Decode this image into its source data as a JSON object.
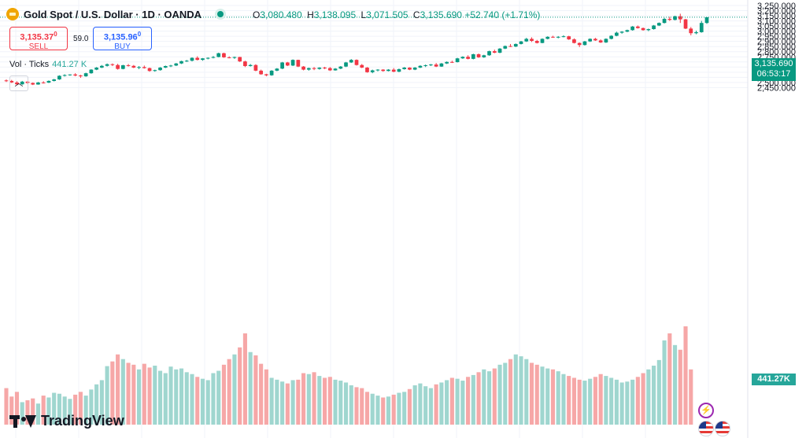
{
  "header": {
    "title": "Gold Spot / U.S. Dollar · 1D · OANDA",
    "ohlc": {
      "o_label": "O",
      "o": "3,080.480",
      "h_label": "H",
      "h": "3,138.095",
      "l_label": "L",
      "l": "3,071.505",
      "c_label": "C",
      "c": "3,135.690",
      "change": "+52.740 (+1.71%)"
    }
  },
  "trade": {
    "sell_price": "3,135.37",
    "sell_sup": "0",
    "sell_label": "SELL",
    "spread": "59.0",
    "buy_price": "3,135.96",
    "buy_sup": "0",
    "buy_label": "BUY"
  },
  "volume_legend": {
    "label": "Vol · Ticks",
    "value": "441.27 K"
  },
  "price_marker": {
    "price": "3,135.690",
    "countdown": "06:53:17"
  },
  "volume_marker": "441.27K",
  "brand": "TradingView",
  "icons": [
    "gold-coin-icon",
    "market-status-icon",
    "collapse-icon",
    "tradingview-logo-icon",
    "lightning-icon",
    "us-flag-icon"
  ],
  "colors": {
    "up": "#089981",
    "down": "#f23645",
    "vol_up": "#26a69a",
    "vol_down": "#ef9a9a",
    "grid": "#f0f3fa"
  },
  "chart_data": {
    "type": "candlestick",
    "ylim": [
      2450,
      3250
    ],
    "y_ticks": [
      "2,450.000",
      "2,500.000",
      "2,550.000",
      "2,600.000",
      "2,650.000",
      "2,700.000",
      "2,750.000",
      "2,800.000",
      "2,850.000",
      "2,900.000",
      "2,950.000",
      "3,000.000",
      "3,050.000",
      "3,100.000",
      "3,150.000",
      "3,200.000",
      "3,250.000"
    ],
    "last_price": 3135.69,
    "ohlc": [
      [
        2520,
        2530,
        2505,
        2515
      ],
      [
        2515,
        2525,
        2495,
        2500
      ],
      [
        2500,
        2512,
        2475,
        2482
      ],
      [
        2482,
        2515,
        2478,
        2508
      ],
      [
        2508,
        2512,
        2488,
        2495
      ],
      [
        2495,
        2500,
        2475,
        2480
      ],
      [
        2480,
        2505,
        2478,
        2500
      ],
      [
        2500,
        2512,
        2490,
        2498
      ],
      [
        2498,
        2520,
        2495,
        2515
      ],
      [
        2515,
        2535,
        2510,
        2530
      ],
      [
        2530,
        2570,
        2525,
        2565
      ],
      [
        2565,
        2580,
        2558,
        2572
      ],
      [
        2572,
        2580,
        2565,
        2578
      ],
      [
        2578,
        2590,
        2560,
        2568
      ],
      [
        2568,
        2575,
        2545,
        2560
      ],
      [
        2560,
        2595,
        2555,
        2590
      ],
      [
        2590,
        2630,
        2585,
        2625
      ],
      [
        2625,
        2650,
        2620,
        2645
      ],
      [
        2645,
        2670,
        2640,
        2662
      ],
      [
        2662,
        2685,
        2655,
        2678
      ],
      [
        2678,
        2685,
        2660,
        2670
      ],
      [
        2670,
        2682,
        2625,
        2632
      ],
      [
        2632,
        2672,
        2628,
        2668
      ],
      [
        2668,
        2680,
        2655,
        2662
      ],
      [
        2662,
        2670,
        2640,
        2645
      ],
      [
        2645,
        2660,
        2630,
        2650
      ],
      [
        2650,
        2665,
        2635,
        2640
      ],
      [
        2640,
        2645,
        2605,
        2612
      ],
      [
        2612,
        2625,
        2605,
        2620
      ],
      [
        2620,
        2650,
        2615,
        2645
      ],
      [
        2645,
        2665,
        2640,
        2660
      ],
      [
        2660,
        2672,
        2650,
        2665
      ],
      [
        2665,
        2690,
        2660,
        2685
      ],
      [
        2685,
        2712,
        2680,
        2708
      ],
      [
        2708,
        2720,
        2700,
        2712
      ],
      [
        2712,
        2745,
        2705,
        2740
      ],
      [
        2740,
        2755,
        2715,
        2720
      ],
      [
        2720,
        2738,
        2712,
        2735
      ],
      [
        2735,
        2745,
        2725,
        2740
      ],
      [
        2740,
        2758,
        2735,
        2748
      ],
      [
        2748,
        2790,
        2745,
        2785
      ],
      [
        2785,
        2790,
        2740,
        2745
      ],
      [
        2745,
        2755,
        2735,
        2740
      ],
      [
        2740,
        2752,
        2730,
        2748
      ],
      [
        2748,
        2750,
        2700,
        2705
      ],
      [
        2705,
        2712,
        2650,
        2660
      ],
      [
        2660,
        2680,
        2655,
        2670
      ],
      [
        2670,
        2678,
        2610,
        2615
      ],
      [
        2615,
        2625,
        2575,
        2580
      ],
      [
        2580,
        2585,
        2560,
        2570
      ],
      [
        2570,
        2620,
        2565,
        2615
      ],
      [
        2615,
        2640,
        2610,
        2635
      ],
      [
        2635,
        2700,
        2630,
        2695
      ],
      [
        2695,
        2700,
        2660,
        2665
      ],
      [
        2665,
        2725,
        2660,
        2720
      ],
      [
        2720,
        2722,
        2650,
        2655
      ],
      [
        2655,
        2660,
        2618,
        2625
      ],
      [
        2625,
        2645,
        2615,
        2640
      ],
      [
        2640,
        2650,
        2620,
        2632
      ],
      [
        2632,
        2648,
        2625,
        2645
      ],
      [
        2645,
        2652,
        2630,
        2640
      ],
      [
        2640,
        2650,
        2612,
        2618
      ],
      [
        2618,
        2640,
        2615,
        2635
      ],
      [
        2635,
        2660,
        2630,
        2655
      ],
      [
        2655,
        2700,
        2650,
        2695
      ],
      [
        2695,
        2728,
        2690,
        2720
      ],
      [
        2720,
        2725,
        2665,
        2670
      ],
      [
        2670,
        2680,
        2640,
        2645
      ],
      [
        2645,
        2650,
        2595,
        2600
      ],
      [
        2600,
        2625,
        2590,
        2618
      ],
      [
        2618,
        2630,
        2608,
        2625
      ],
      [
        2625,
        2630,
        2605,
        2612
      ],
      [
        2612,
        2630,
        2608,
        2625
      ],
      [
        2625,
        2640,
        2600,
        2605
      ],
      [
        2605,
        2635,
        2600,
        2630
      ],
      [
        2630,
        2650,
        2625,
        2645
      ],
      [
        2645,
        2648,
        2620,
        2625
      ],
      [
        2625,
        2650,
        2620,
        2645
      ],
      [
        2645,
        2668,
        2640,
        2662
      ],
      [
        2662,
        2675,
        2650,
        2668
      ],
      [
        2668,
        2680,
        2660,
        2675
      ],
      [
        2675,
        2690,
        2650,
        2655
      ],
      [
        2655,
        2690,
        2652,
        2685
      ],
      [
        2685,
        2705,
        2680,
        2700
      ],
      [
        2700,
        2712,
        2690,
        2698
      ],
      [
        2698,
        2740,
        2695,
        2735
      ],
      [
        2735,
        2755,
        2730,
        2750
      ],
      [
        2750,
        2765,
        2725,
        2730
      ],
      [
        2730,
        2780,
        2725,
        2775
      ],
      [
        2775,
        2782,
        2740,
        2745
      ],
      [
        2745,
        2770,
        2740,
        2765
      ],
      [
        2765,
        2810,
        2760,
        2805
      ],
      [
        2805,
        2820,
        2785,
        2790
      ],
      [
        2790,
        2835,
        2785,
        2830
      ],
      [
        2830,
        2860,
        2825,
        2855
      ],
      [
        2855,
        2875,
        2845,
        2850
      ],
      [
        2850,
        2880,
        2845,
        2875
      ],
      [
        2875,
        2905,
        2870,
        2900
      ],
      [
        2900,
        2935,
        2895,
        2925
      ],
      [
        2925,
        2940,
        2895,
        2905
      ],
      [
        2905,
        2915,
        2880,
        2885
      ],
      [
        2885,
        2930,
        2882,
        2925
      ],
      [
        2925,
        2950,
        2920,
        2945
      ],
      [
        2945,
        2955,
        2935,
        2940
      ],
      [
        2940,
        2952,
        2930,
        2945
      ],
      [
        2945,
        2960,
        2940,
        2950
      ],
      [
        2950,
        2955,
        2915,
        2920
      ],
      [
        2920,
        2930,
        2880,
        2885
      ],
      [
        2885,
        2890,
        2845,
        2865
      ],
      [
        2865,
        2905,
        2860,
        2900
      ],
      [
        2900,
        2930,
        2895,
        2925
      ],
      [
        2925,
        2935,
        2905,
        2910
      ],
      [
        2910,
        2920,
        2885,
        2890
      ],
      [
        2890,
        2930,
        2885,
        2925
      ],
      [
        2925,
        2960,
        2920,
        2955
      ],
      [
        2955,
        2995,
        2950,
        2985
      ],
      [
        2985,
        3000,
        2975,
        2995
      ],
      [
        2995,
        3015,
        2990,
        3010
      ],
      [
        3010,
        3050,
        3005,
        3045
      ],
      [
        3045,
        3055,
        3025,
        3030
      ],
      [
        3030,
        3035,
        3005,
        3010
      ],
      [
        3010,
        3025,
        3000,
        3020
      ],
      [
        3020,
        3060,
        3015,
        3055
      ],
      [
        3055,
        3085,
        3050,
        3080
      ],
      [
        3080,
        3130,
        3075,
        3120
      ],
      [
        3120,
        3140,
        3100,
        3110
      ],
      [
        3110,
        3150,
        3105,
        3145
      ],
      [
        3145,
        3170,
        3080,
        3115
      ],
      [
        3115,
        3120,
        3020,
        3025
      ],
      [
        3025,
        3040,
        2960,
        2980
      ],
      [
        2980,
        3005,
        2970,
        2990
      ],
      [
        2990,
        3100,
        2985,
        3080
      ],
      [
        3080,
        3138,
        3071,
        3135.69
      ]
    ],
    "volume": [
      78,
      60,
      70,
      48,
      52,
      56,
      45,
      62,
      58,
      68,
      66,
      60,
      55,
      64,
      70,
      62,
      75,
      86,
      95,
      125,
      135,
      150,
      140,
      132,
      128,
      118,
      130,
      122,
      126,
      115,
      110,
      124,
      118,
      120,
      112,
      108,
      102,
      98,
      95,
      110,
      115,
      128,
      140,
      150,
      165,
      195,
      155,
      148,
      130,
      118,
      100,
      96,
      92,
      88,
      95,
      96,
      110,
      108,
      112,
      104,
      100,
      102,
      96,
      94,
      90,
      84,
      80,
      78,
      70,
      66,
      62,
      58,
      60,
      64,
      68,
      70,
      76,
      84,
      88,
      82,
      78,
      86,
      90,
      95,
      100,
      98,
      94,
      102,
      106,
      112,
      118,
      114,
      120,
      128,
      132,
      140,
      150,
      146,
      140,
      132,
      128,
      124,
      120,
      118,
      114,
      108,
      104,
      100,
      96,
      94,
      98,
      102,
      108,
      104,
      100,
      96,
      90,
      92,
      96,
      102,
      110,
      118,
      126,
      138,
      180,
      195,
      170,
      160,
      210,
      118
    ],
    "last_volume": "441.27K"
  }
}
